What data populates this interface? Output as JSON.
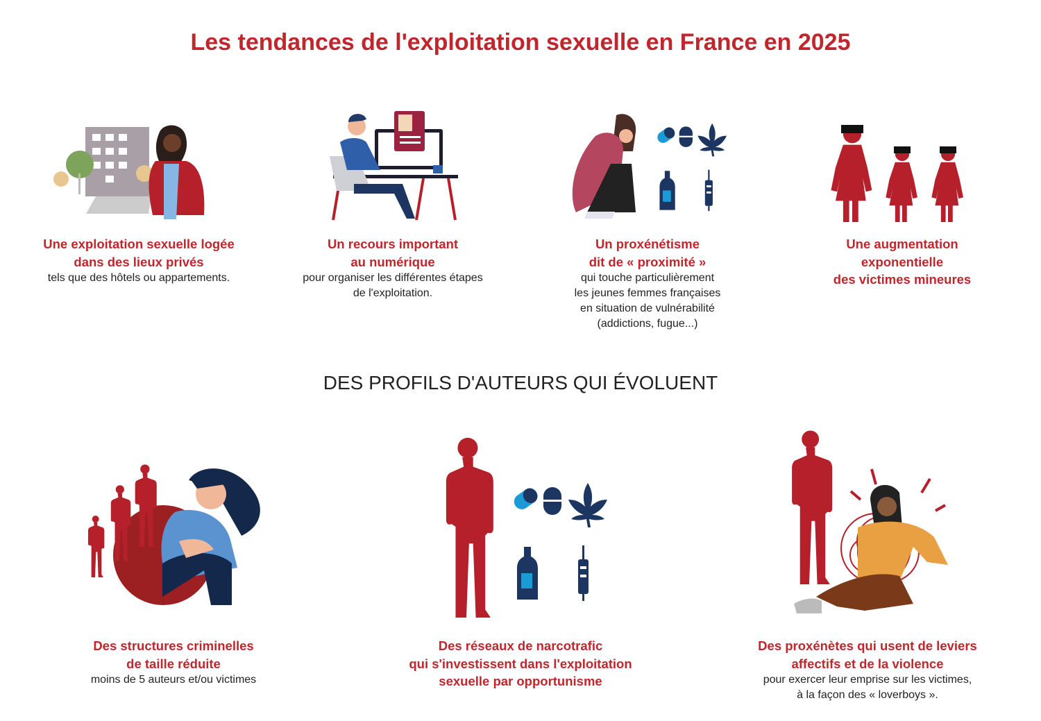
{
  "header": {
    "title": "Les tendances de l'exploitation sexuelle en France en 2025"
  },
  "trends": [
    {
      "heading": [
        "Une exploitation sexuelle logée",
        "dans des lieux privés"
      ],
      "text": [
        "tels que des hôtels ou appartements."
      ]
    },
    {
      "heading": [
        "Un recours important",
        "au numérique"
      ],
      "text": [
        "pour organiser les différentes étapes",
        "de l'exploitation."
      ]
    },
    {
      "heading": [
        "Un proxénétisme",
        "dit de « proximité »"
      ],
      "text": [
        "qui touche particulièrement",
        "les jeunes femmes françaises",
        "en situation de vulnérabilité",
        "(addictions, fugue...)"
      ]
    },
    {
      "heading": [
        "Une augmentation",
        "exponentielle",
        "des victimes mineures"
      ]
    }
  ],
  "section": {
    "title": "DES PROFILS D'AUTEURS QUI ÉVOLUENT"
  },
  "profiles": [
    {
      "heading": [
        "Des structures criminelles",
        "de taille réduite"
      ],
      "text": [
        "moins de 5 auteurs et/ou victimes"
      ]
    },
    {
      "heading": [
        "Des réseaux de narcotrafic",
        "qui s'investissent dans l'exploitation",
        "sexuelle par opportunisme"
      ]
    },
    {
      "heading": [
        "Des proxénètes qui usent de leviers",
        "affectifs et de la violence"
      ],
      "text": [
        "pour exercer leur emprise sur les victimes,",
        "à la façon des « loverboys »."
      ]
    }
  ]
}
